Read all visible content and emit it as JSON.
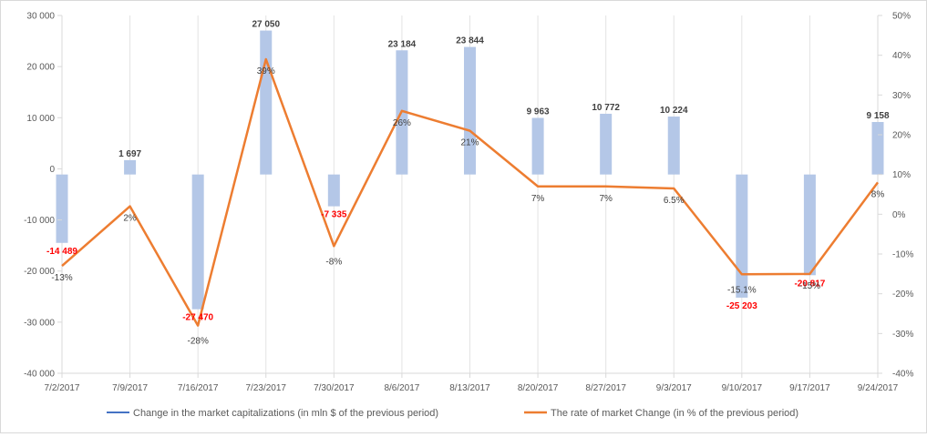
{
  "chart_data": {
    "type": "bar+line",
    "categories": [
      "7/2/2017",
      "7/9/2017",
      "7/16/2017",
      "7/23/2017",
      "7/30/2017",
      "8/6/2017",
      "8/13/2017",
      "8/20/2017",
      "8/27/2017",
      "9/3/2017",
      "9/10/2017",
      "9/17/2017",
      "9/24/2017"
    ],
    "series": [
      {
        "name": "Change in the market capitalizations  (in mln $ of the previous period)",
        "type": "bar",
        "axis": "left",
        "values": [
          -14489,
          1697,
          -27470,
          27050,
          -7335,
          23184,
          23844,
          9963,
          10772,
          10224,
          -25203,
          -20817,
          9158
        ],
        "labels": [
          "-14 489",
          "1 697",
          "-27 470",
          "27 050",
          "-7 335",
          "23 184",
          "23 844",
          "9 963",
          "10 772",
          "10 224",
          "-25 203",
          "-20 817",
          "9 158"
        ]
      },
      {
        "name": "The rate of market Change (in % of the previous period)",
        "type": "line",
        "axis": "right",
        "values": [
          -13,
          2,
          -28,
          39,
          -8,
          26,
          21,
          7,
          7,
          6.5,
          -15.1,
          -15,
          8
        ],
        "labels": [
          "-13%",
          "2%",
          "-28%",
          "39%",
          "-8%",
          "26%",
          "21%",
          "7%",
          "7%",
          "6.5%",
          "-15.1%",
          "-15%",
          "8%"
        ]
      }
    ],
    "y_left": {
      "min": -40000,
      "max": 30000,
      "step": 10000,
      "tick_labels": [
        "-40 000",
        "-30 000",
        "-20 000",
        "-10 000",
        "0",
        "10 000",
        "20 000",
        "30 000"
      ]
    },
    "y_right": {
      "min": -40,
      "max": 50,
      "step": 10,
      "tick_labels": [
        "-40%",
        "-30%",
        "-20%",
        "-10%",
        "0%",
        "10%",
        "20%",
        "30%",
        "40%",
        "50%"
      ]
    },
    "grid": "vertical",
    "legend": "bottom",
    "colors": {
      "bar": "#b4c7e7",
      "line": "#ed7d31",
      "negative_label": "#ff0000",
      "positive_label": "#404040",
      "legend_bar_swatch": "#4472c4"
    }
  }
}
